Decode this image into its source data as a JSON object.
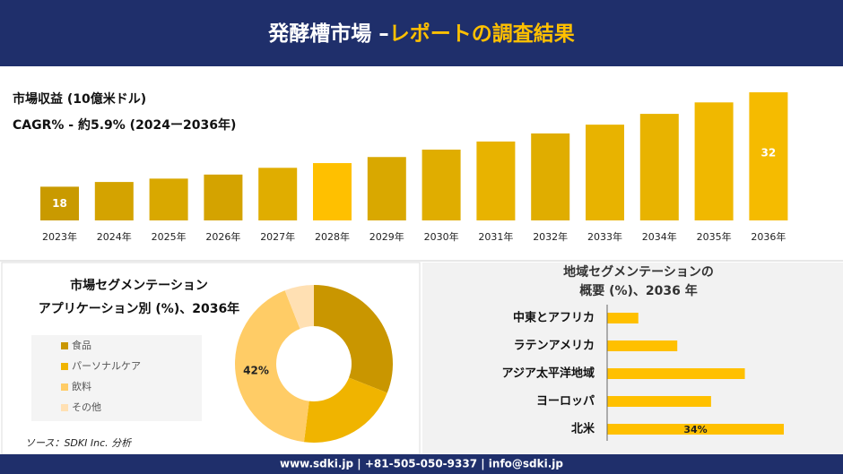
{
  "header": {
    "title_part1": "発酵槽市場 –",
    "title_part2": "レポートの調査結果"
  },
  "chart_data": [
    {
      "type": "bar",
      "title": "市場収益 (10億米ドル)",
      "subtitle": "CAGR% - 約5.9% (2024ー2036年)",
      "categories": [
        "2023年",
        "2024年",
        "2025年",
        "2026年",
        "2027年",
        "2028年",
        "2029年",
        "2030年",
        "2031年",
        "2032年",
        "2033年",
        "2034年",
        "2035年",
        "2036年"
      ],
      "values": [
        18,
        18.7,
        19.2,
        19.8,
        20.8,
        21.5,
        22.4,
        23.5,
        24.7,
        25.9,
        27.2,
        28.8,
        30.5,
        32
      ],
      "value_labels": [
        "18",
        null,
        null,
        null,
        null,
        null,
        null,
        null,
        null,
        null,
        null,
        null,
        null,
        "32"
      ],
      "colors": [
        "#c99a00",
        "#d4a300",
        "#d9a800",
        "#d4a300",
        "#e0ad00",
        "#ffc000",
        "#d9a800",
        "#e0ad00",
        "#e8b300",
        "#e0ad00",
        "#e8b300",
        "#e8b300",
        "#f0b800",
        "#f5bb00"
      ],
      "ylim": [
        13,
        32
      ]
    },
    {
      "type": "donut",
      "title_lines": [
        "市場セグメンテーション",
        "アプリケーション別 (%)、2036年"
      ],
      "categories": [
        "食品",
        "パーソナルケア",
        "飲料",
        "その他"
      ],
      "values": [
        31,
        21,
        42,
        6
      ],
      "value_labels": [
        null,
        null,
        "42%",
        null
      ],
      "colors": [
        "#c99600",
        "#f0b400",
        "#ffcc66",
        "#ffe0b3"
      ]
    },
    {
      "type": "hbar",
      "title_lines": [
        "地域セグメンテーションの",
        "概要 (%)、2036 年"
      ],
      "categories": [
        "中東とアフリカ",
        "ラテンアメリカ",
        "アジア太平洋地域",
        "ヨーロッパ",
        "北米"
      ],
      "values": [
        6,
        13.5,
        26.5,
        20,
        34
      ],
      "value_labels": [
        null,
        null,
        null,
        null,
        "34%"
      ],
      "color": "#ffc000",
      "label_color": "#c99a00",
      "xlim": [
        0,
        34
      ]
    }
  ],
  "source": "ソース：SDKI Inc. 分析",
  "footer": "www.sdki.jp | +81-505-050-9337 | info@sdki.jp"
}
